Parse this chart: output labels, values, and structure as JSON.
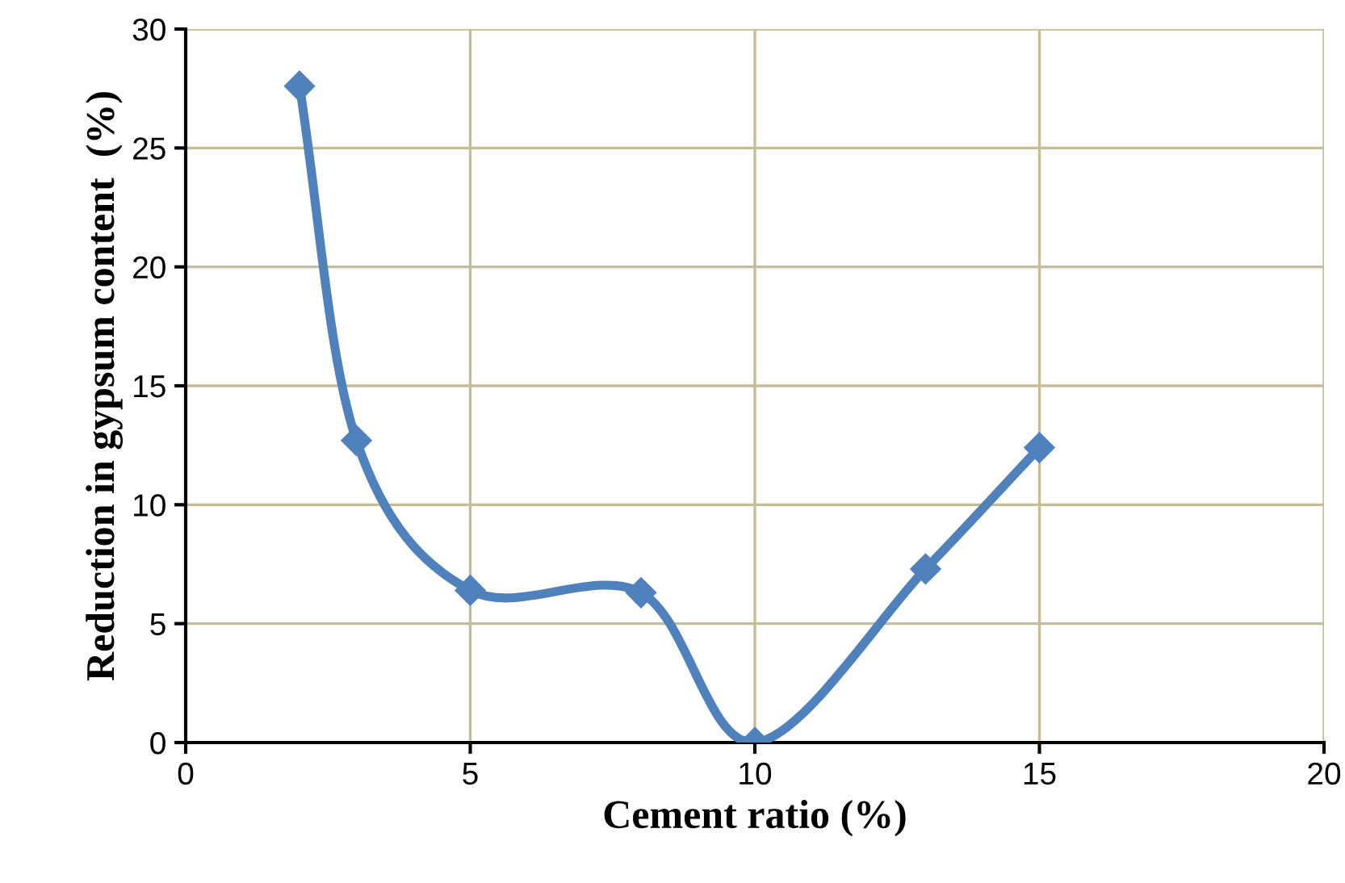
{
  "chart_data": {
    "type": "line",
    "xlabel": "Cement ratio (%)",
    "ylabel": "Reduction in gypsum content  (%)",
    "x": [
      2,
      3,
      5,
      8,
      10,
      13,
      15
    ],
    "series": [
      {
        "color": "#4f81bd",
        "values": [
          27.6,
          12.7,
          6.4,
          6.3,
          0,
          7.3,
          12.4
        ]
      }
    ],
    "xlim": [
      0,
      20
    ],
    "xticks": [
      0,
      5,
      10,
      15,
      20
    ],
    "ylim": [
      0,
      30
    ],
    "yticks": [
      0,
      5,
      10,
      15,
      20,
      25,
      30
    ],
    "grid": true,
    "marker": "diamond",
    "line_style": "solid",
    "legend": false
  }
}
